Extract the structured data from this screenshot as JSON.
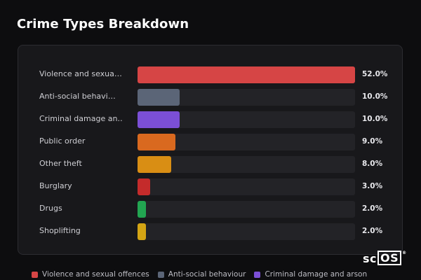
{
  "title": "Crime Types Breakdown",
  "chart_data": {
    "type": "bar",
    "orientation": "horizontal",
    "categories": [
      "Violence and sexua…",
      "Anti-social behavi…",
      "Criminal damage an…",
      "Public order",
      "Other theft",
      "Burglary",
      "Drugs",
      "Shoplifting"
    ],
    "values": [
      52.0,
      10.0,
      10.0,
      9.0,
      8.0,
      3.0,
      2.0,
      2.0
    ],
    "value_labels": [
      "52.0%",
      "10.0%",
      "10.0%",
      "9.0%",
      "8.0%",
      "3.0%",
      "2.0%",
      "2.0%"
    ],
    "colors": [
      "#d64545",
      "#5b6577",
      "#7b4fd6",
      "#d9691f",
      "#d98e14",
      "#c42b2b",
      "#22a551",
      "#d4a514"
    ],
    "xlim": [
      0,
      52
    ],
    "legend": [
      "Violence and sexual offences",
      "Anti-social behaviour",
      "Criminal damage and arson"
    ],
    "legend_colors": [
      "#d64545",
      "#5b6577",
      "#7b4fd6"
    ],
    "legend_position": "bottom"
  },
  "logo": {
    "prefix": "sc",
    "boxed": "OS",
    "mark": "®"
  }
}
